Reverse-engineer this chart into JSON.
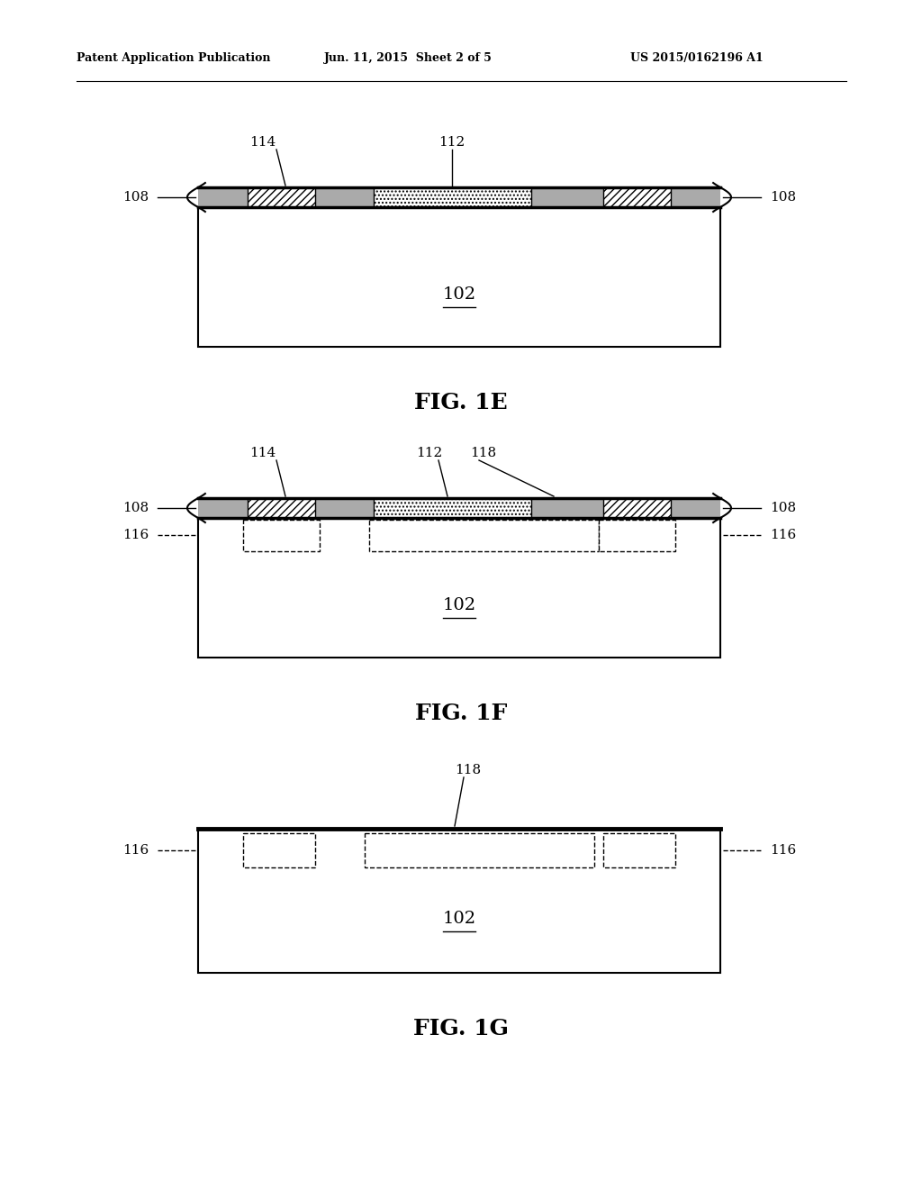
{
  "bg_color": "#ffffff",
  "line_color": "#000000",
  "header_left": "Patent Application Publication",
  "header_mid": "Jun. 11, 2015  Sheet 2 of 5",
  "header_right": "US 2015/0162196 A1",
  "fig1e_label": "FIG. 1E",
  "fig1f_label": "FIG. 1F",
  "fig1g_label": "FIG. 1G",
  "label_102": "102",
  "label_108": "108",
  "label_112": "112",
  "label_114": "114",
  "label_116": "116",
  "label_118": "118",
  "lw_thin": 1.0,
  "lw_med": 1.5,
  "lw_thick": 2.5
}
